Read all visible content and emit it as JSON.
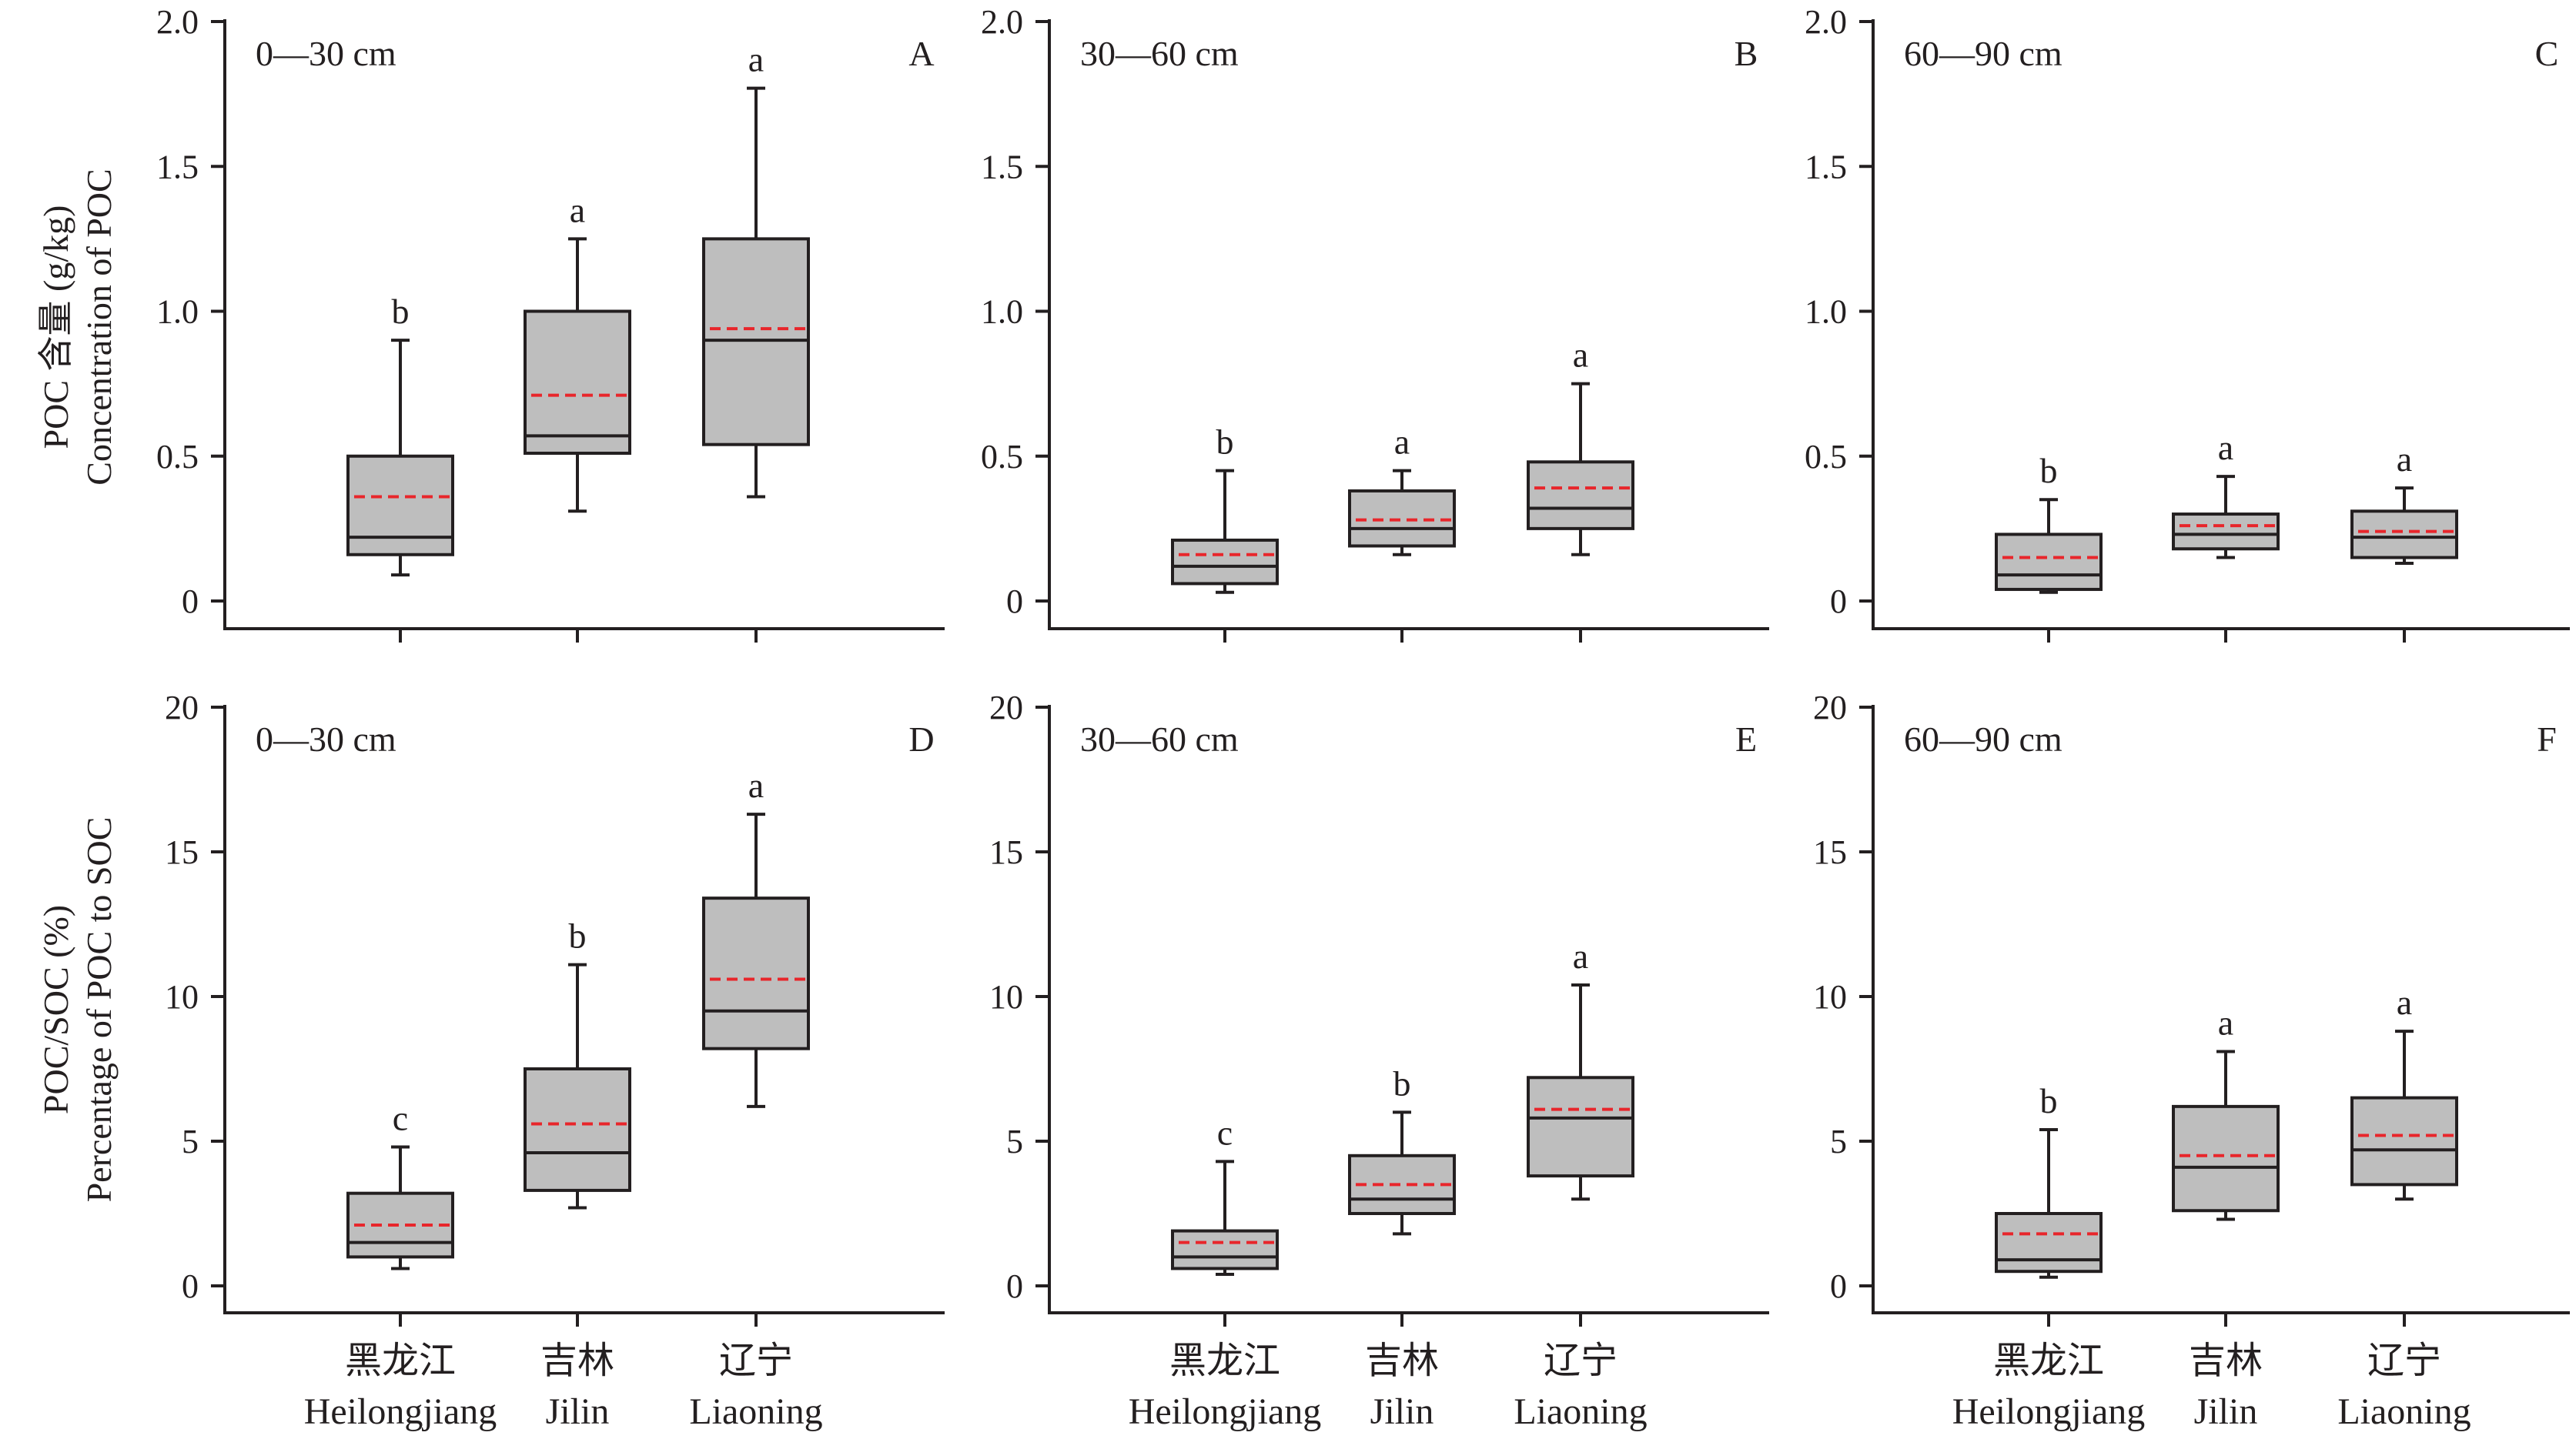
{
  "chart_data": [
    {
      "type": "box",
      "panel": "A",
      "depth": "0—30 cm",
      "ylabel_cn": "POC 含量 (g/kg)",
      "ylabel_en": "Concentration of POC",
      "ylim": [
        -0.1,
        2.0
      ],
      "yticks": [
        0,
        0.5,
        1.0,
        1.5,
        2.0
      ],
      "ytick_labels": [
        "0",
        "0.5",
        "1.0",
        "1.5",
        "2.0"
      ],
      "categories_cn": [
        "黑龙江",
        "吉林",
        "辽宁"
      ],
      "categories_en": [
        "Heilongjiang",
        "Jilin",
        "Liaoning"
      ],
      "boxes": [
        {
          "min": 0.09,
          "q1": 0.16,
          "median": 0.22,
          "q3": 0.5,
          "max": 0.9,
          "mean": 0.36,
          "sig": "b"
        },
        {
          "min": 0.31,
          "q1": 0.51,
          "median": 0.57,
          "q3": 1.0,
          "max": 1.25,
          "mean": 0.71,
          "sig": "a"
        },
        {
          "min": 0.36,
          "q1": 0.54,
          "median": 0.9,
          "q3": 1.25,
          "max": 1.77,
          "mean": 0.94,
          "sig": "a"
        }
      ]
    },
    {
      "type": "box",
      "panel": "B",
      "depth": "30—60 cm",
      "ylim": [
        -0.1,
        2.0
      ],
      "yticks": [
        0,
        0.5,
        1.0,
        1.5,
        2.0
      ],
      "ytick_labels": [
        "0",
        "0.5",
        "1.0",
        "1.5",
        "2.0"
      ],
      "categories_cn": [
        "黑龙江",
        "吉林",
        "辽宁"
      ],
      "categories_en": [
        "Heilongjiang",
        "Jilin",
        "Liaoning"
      ],
      "boxes": [
        {
          "min": 0.03,
          "q1": 0.06,
          "median": 0.12,
          "q3": 0.21,
          "max": 0.45,
          "mean": 0.16,
          "sig": "b"
        },
        {
          "min": 0.16,
          "q1": 0.19,
          "median": 0.25,
          "q3": 0.38,
          "max": 0.45,
          "mean": 0.28,
          "sig": "a"
        },
        {
          "min": 0.16,
          "q1": 0.25,
          "median": 0.32,
          "q3": 0.48,
          "max": 0.75,
          "mean": 0.39,
          "sig": "a"
        }
      ]
    },
    {
      "type": "box",
      "panel": "C",
      "depth": "60—90 cm",
      "ylim": [
        -0.1,
        2.0
      ],
      "yticks": [
        0,
        0.5,
        1.0,
        1.5,
        2.0
      ],
      "ytick_labels": [
        "0",
        "0.5",
        "1.0",
        "1.5",
        "2.0"
      ],
      "categories_cn": [
        "黑龙江",
        "吉林",
        "辽宁"
      ],
      "categories_en": [
        "Heilongjiang",
        "Jilin",
        "Liaoning"
      ],
      "boxes": [
        {
          "min": 0.03,
          "q1": 0.04,
          "median": 0.09,
          "q3": 0.23,
          "max": 0.35,
          "mean": 0.15,
          "sig": "b"
        },
        {
          "min": 0.15,
          "q1": 0.18,
          "median": 0.23,
          "q3": 0.3,
          "max": 0.43,
          "mean": 0.26,
          "sig": "a"
        },
        {
          "min": 0.13,
          "q1": 0.15,
          "median": 0.22,
          "q3": 0.31,
          "max": 0.39,
          "mean": 0.24,
          "sig": "a"
        }
      ]
    },
    {
      "type": "box",
      "panel": "D",
      "depth": "0—30 cm",
      "ylabel_cn": "POC/SOC (%)",
      "ylabel_en": "Percentage of POC to SOC",
      "ylim": [
        -1,
        20
      ],
      "yticks": [
        0,
        5,
        10,
        15,
        20
      ],
      "ytick_labels": [
        "0",
        "5",
        "10",
        "15",
        "20"
      ],
      "categories_cn": [
        "黑龙江",
        "吉林",
        "辽宁"
      ],
      "categories_en": [
        "Heilongjiang",
        "Jilin",
        "Liaoning"
      ],
      "boxes": [
        {
          "min": 0.6,
          "q1": 1.0,
          "median": 1.5,
          "q3": 3.2,
          "max": 4.8,
          "mean": 2.1,
          "sig": "c"
        },
        {
          "min": 2.7,
          "q1": 3.3,
          "median": 4.6,
          "q3": 7.5,
          "max": 11.1,
          "mean": 5.6,
          "sig": "b"
        },
        {
          "min": 6.2,
          "q1": 8.2,
          "median": 9.5,
          "q3": 13.4,
          "max": 16.3,
          "mean": 10.6,
          "sig": "a"
        }
      ]
    },
    {
      "type": "box",
      "panel": "E",
      "depth": "30—60 cm",
      "ylim": [
        -1,
        20
      ],
      "yticks": [
        0,
        5,
        10,
        15,
        20
      ],
      "ytick_labels": [
        "0",
        "5",
        "10",
        "15",
        "20"
      ],
      "categories_cn": [
        "黑龙江",
        "吉林",
        "辽宁"
      ],
      "categories_en": [
        "Heilongjiang",
        "Jilin",
        "Liaoning"
      ],
      "boxes": [
        {
          "min": 0.4,
          "q1": 0.6,
          "median": 1.0,
          "q3": 1.9,
          "max": 4.3,
          "mean": 1.5,
          "sig": "c"
        },
        {
          "min": 1.8,
          "q1": 2.5,
          "median": 3.0,
          "q3": 4.5,
          "max": 6.0,
          "mean": 3.5,
          "sig": "b"
        },
        {
          "min": 3.0,
          "q1": 3.8,
          "median": 5.8,
          "q3": 7.2,
          "max": 10.4,
          "mean": 6.1,
          "sig": "a"
        }
      ]
    },
    {
      "type": "box",
      "panel": "F",
      "depth": "60—90 cm",
      "ylim": [
        -1,
        20
      ],
      "yticks": [
        0,
        5,
        10,
        15,
        20
      ],
      "ytick_labels": [
        "0",
        "5",
        "10",
        "15",
        "20"
      ],
      "categories_cn": [
        "黑龙江",
        "吉林",
        "辽宁"
      ],
      "categories_en": [
        "Heilongjiang",
        "Jilin",
        "Liaoning"
      ],
      "boxes": [
        {
          "min": 0.3,
          "q1": 0.5,
          "median": 0.9,
          "q3": 2.5,
          "max": 5.4,
          "mean": 1.8,
          "sig": "b"
        },
        {
          "min": 2.3,
          "q1": 2.6,
          "median": 4.1,
          "q3": 6.2,
          "max": 8.1,
          "mean": 4.5,
          "sig": "a"
        },
        {
          "min": 3.0,
          "q1": 3.5,
          "median": 4.7,
          "q3": 6.5,
          "max": 8.8,
          "mean": 5.2,
          "sig": "a"
        }
      ]
    }
  ],
  "colors": {
    "box_fill": "#bebebe",
    "axis": "#231f20",
    "mean_line": "#e8262b"
  }
}
